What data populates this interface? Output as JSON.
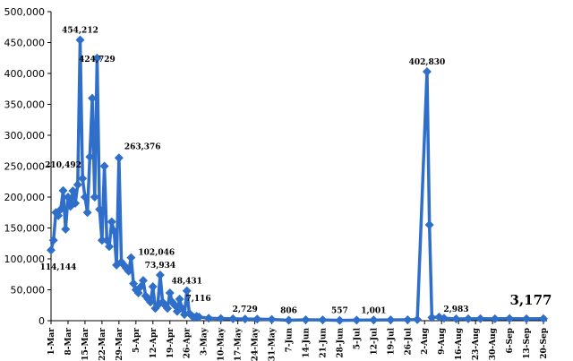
{
  "chart_data": {
    "type": "line",
    "title": "",
    "xlabel": "",
    "ylabel": "",
    "ylim": [
      0,
      500000
    ],
    "yticks": [
      0,
      50000,
      100000,
      150000,
      200000,
      250000,
      300000,
      350000,
      400000,
      450000,
      500000
    ],
    "ytick_labels": [
      "0",
      "50,000",
      "100,000",
      "150,000",
      "200,000",
      "250,000",
      "300,000",
      "350,000",
      "400,000",
      "450,000",
      "500,000"
    ],
    "grid": false,
    "legend": "none",
    "series_color": "#2F6EC9",
    "x_start": "1-Mar",
    "x_end": "20-Sep",
    "xtick_labels": [
      "1-Mar",
      "8-Mar",
      "15-Mar",
      "22-Mar",
      "29-Mar",
      "5-Apr",
      "12-Apr",
      "19-Apr",
      "26-Apr",
      "3-May",
      "10-May",
      "17-May",
      "24-May",
      "31-May",
      "7-Jun",
      "14-Jun",
      "21-Jun",
      "28-Jun",
      "5-Jul",
      "12-Jul",
      "19-Jul",
      "26-Jul",
      "2-Aug",
      "9-Aug",
      "16-Aug",
      "23-Aug",
      "30-Aug",
      "6-Sep",
      "13-Sep",
      "20-Sep"
    ],
    "series": [
      {
        "points": [
          [
            "1-Mar",
            114144
          ],
          [
            "2-Mar",
            130000
          ],
          [
            "3-Mar",
            175000
          ],
          [
            "4-Mar",
            170000
          ],
          [
            "5-Mar",
            180000
          ],
          [
            "6-Mar",
            210492
          ],
          [
            "7-Mar",
            148000
          ],
          [
            "8-Mar",
            200000
          ],
          [
            "9-Mar",
            185000
          ],
          [
            "10-Mar",
            210000
          ],
          [
            "11-Mar",
            190000
          ],
          [
            "12-Mar",
            220000
          ],
          [
            "13-Mar",
            454212
          ],
          [
            "14-Mar",
            230000
          ],
          [
            "15-Mar",
            200000
          ],
          [
            "16-Mar",
            175000
          ],
          [
            "17-Mar",
            265000
          ],
          [
            "18-Mar",
            360000
          ],
          [
            "19-Mar",
            200000
          ],
          [
            "20-Mar",
            424729
          ],
          [
            "21-Mar",
            180000
          ],
          [
            "22-Mar",
            130000
          ],
          [
            "23-Mar",
            250000
          ],
          [
            "24-Mar",
            130000
          ],
          [
            "25-Mar",
            120000
          ],
          [
            "26-Mar",
            160000
          ],
          [
            "27-Mar",
            145000
          ],
          [
            "28-Mar",
            90000
          ],
          [
            "29-Mar",
            263376
          ],
          [
            "30-Mar",
            95000
          ],
          [
            "31-Mar",
            90000
          ],
          [
            "1-Apr",
            85000
          ],
          [
            "2-Apr",
            80000
          ],
          [
            "3-Apr",
            102046
          ],
          [
            "4-Apr",
            60000
          ],
          [
            "5-Apr",
            50000
          ],
          [
            "6-Apr",
            45000
          ],
          [
            "7-Apr",
            55000
          ],
          [
            "8-Apr",
            65000
          ],
          [
            "9-Apr",
            40000
          ],
          [
            "10-Apr",
            35000
          ],
          [
            "11-Apr",
            30000
          ],
          [
            "12-Apr",
            55000
          ],
          [
            "13-Apr",
            20000
          ],
          [
            "14-Apr",
            25000
          ],
          [
            "15-Apr",
            73934
          ],
          [
            "16-Apr",
            30000
          ],
          [
            "17-Apr",
            25000
          ],
          [
            "18-Apr",
            20000
          ],
          [
            "19-Apr",
            45000
          ],
          [
            "20-Apr",
            30000
          ],
          [
            "21-Apr",
            25000
          ],
          [
            "22-Apr",
            15000
          ],
          [
            "23-Apr",
            35000
          ],
          [
            "24-Apr",
            20000
          ],
          [
            "25-Apr",
            10000
          ],
          [
            "26-Apr",
            48431
          ],
          [
            "27-Apr",
            12000
          ],
          [
            "28-Apr",
            8000
          ],
          [
            "29-Apr",
            5000
          ],
          [
            "30-Apr",
            7116
          ],
          [
            "1-May",
            6000
          ],
          [
            "5-May",
            4000
          ],
          [
            "10-May",
            3500
          ],
          [
            "15-May",
            3000
          ],
          [
            "20-May",
            2729
          ],
          [
            "25-May",
            2500
          ],
          [
            "31-May",
            2000
          ],
          [
            "7-Jun",
            806
          ],
          [
            "14-Jun",
            1500
          ],
          [
            "21-Jun",
            1200
          ],
          [
            "28-Jun",
            557
          ],
          [
            "5-Jul",
            900
          ],
          [
            "12-Jul",
            1001
          ],
          [
            "19-Jul",
            1200
          ],
          [
            "26-Jul",
            1500
          ],
          [
            "30-Jul",
            1800
          ],
          [
            "3-Aug",
            402830
          ],
          [
            "4-Aug",
            155000
          ],
          [
            "5-Aug",
            5000
          ],
          [
            "8-Aug",
            6000
          ],
          [
            "10-Aug",
            4000
          ],
          [
            "15-Aug",
            2983
          ],
          [
            "20-Aug",
            3000
          ],
          [
            "25-Aug",
            3200
          ],
          [
            "31-Aug",
            3000
          ],
          [
            "6-Sep",
            3500
          ],
          [
            "13-Sep",
            3100
          ],
          [
            "20-Sep",
            3177
          ]
        ]
      }
    ],
    "data_labels": [
      {
        "x": "1-Mar",
        "text": "114,144"
      },
      {
        "x": "6-Mar",
        "text": "210,492"
      },
      {
        "x": "13-Mar",
        "text": "454,212"
      },
      {
        "x": "20-Mar",
        "text": "424,729"
      },
      {
        "x": "29-Mar",
        "text": "263,376"
      },
      {
        "x": "3-Apr",
        "text": "102,046"
      },
      {
        "x": "15-Apr",
        "text": "73,934"
      },
      {
        "x": "26-Apr",
        "text": "48,431"
      },
      {
        "x": "30-Apr",
        "text": "7,116"
      },
      {
        "x": "20-May",
        "text": "2,729"
      },
      {
        "x": "7-Jun",
        "text": "806"
      },
      {
        "x": "28-Jun",
        "text": "557"
      },
      {
        "x": "12-Jul",
        "text": "1,001"
      },
      {
        "x": "3-Aug",
        "text": "402,830"
      },
      {
        "x": "15-Aug",
        "text": "2,983"
      },
      {
        "x": "20-Sep",
        "text": "3,177",
        "emphasis": true
      }
    ]
  }
}
